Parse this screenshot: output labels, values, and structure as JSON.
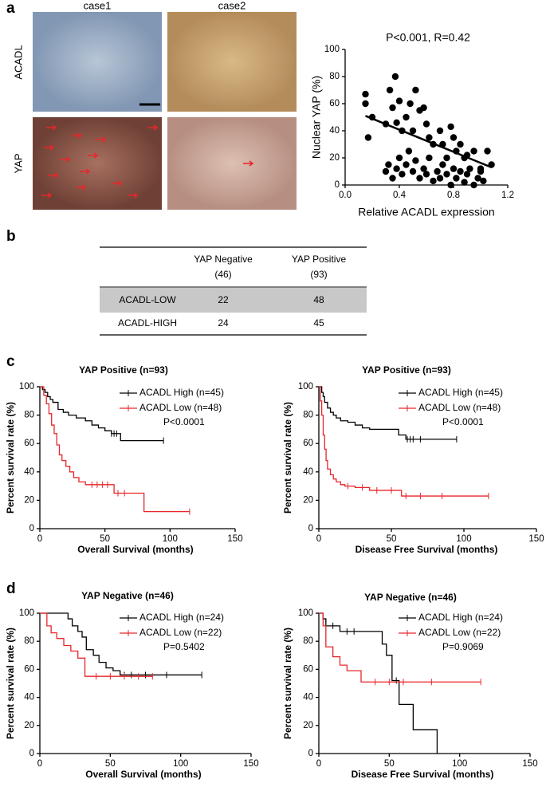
{
  "panel_labels": [
    "a",
    "b",
    "c",
    "d"
  ],
  "images": {
    "columns": [
      "case1",
      "case2"
    ],
    "rows": [
      "ACADL",
      "YAP"
    ]
  },
  "table": {
    "header": [
      [
        "YAP Negative",
        "(46)"
      ],
      [
        "YAP Positive",
        "(93)"
      ]
    ],
    "rows": [
      [
        "ACADL-LOW",
        22,
        48
      ],
      [
        "ACADL-HIGH",
        24,
        45
      ]
    ]
  },
  "chart_data": [
    {
      "type": "scatter",
      "title": "P<0.001, R=0.42",
      "x_label": "Relative ACADL expression",
      "y_label": "Nuclear YAP (%)",
      "xlim": [
        0,
        1.2
      ],
      "ylim": [
        0,
        100
      ],
      "xticks": [
        {
          "value": 0,
          "label": "0.0"
        },
        0.4,
        0.8,
        1.2
      ],
      "yticks": [
        0,
        20,
        40,
        60,
        80,
        100
      ],
      "color": "#000000",
      "x": [
        0.15,
        0.15,
        0.17,
        0.2,
        0.3,
        0.33,
        0.35,
        0.37,
        0.38,
        0.4,
        0.42,
        0.45,
        0.48,
        0.5,
        0.52,
        0.55,
        0.58,
        0.6,
        0.62,
        0.65,
        0.7,
        0.72,
        0.75,
        0.78,
        0.8,
        0.82,
        0.85,
        0.88,
        0.9,
        0.95,
        1.0,
        1.05,
        1.08,
        0.3,
        0.32,
        0.35,
        0.38,
        0.4,
        0.42,
        0.45,
        0.47,
        0.5,
        0.52,
        0.55,
        0.58,
        0.6,
        0.62,
        0.65,
        0.68,
        0.7,
        0.72,
        0.75,
        0.78,
        0.8,
        0.82,
        0.85,
        0.88,
        0.9,
        0.92,
        0.95,
        0.98,
        1.0,
        1.02
      ],
      "values": [
        60,
        67,
        35,
        50,
        45,
        70,
        57,
        80,
        46,
        62,
        40,
        50,
        60,
        40,
        70,
        55,
        57,
        45,
        35,
        30,
        40,
        30,
        20,
        43,
        35,
        25,
        30,
        20,
        22,
        25,
        12,
        25,
        15,
        10,
        15,
        5,
        12,
        20,
        8,
        15,
        25,
        10,
        18,
        5,
        12,
        8,
        20,
        3,
        10,
        5,
        15,
        8,
        0,
        12,
        5,
        10,
        2,
        8,
        12,
        0,
        5,
        10,
        3
      ],
      "trend_line": {
        "x": [
          0.15,
          1.08
        ],
        "values": [
          51,
          13
        ]
      }
    },
    {
      "type": "survival",
      "title": "YAP Positive (n=93)",
      "x_label": "Overall Survival (months)",
      "y_label": "Percent survival rate (%)",
      "annotation": "P<0.0001",
      "xlim": [
        0,
        150
      ],
      "ylim": [
        0,
        100
      ],
      "xticks": [
        0,
        50,
        100,
        150
      ],
      "yticks": [
        0,
        20,
        40,
        60,
        80,
        100
      ],
      "series": [
        {
          "name": "ACADL High (n=45)",
          "color": "#000000",
          "x": [
            0,
            2,
            4,
            6,
            8,
            10,
            14,
            18,
            22,
            28,
            35,
            40,
            45,
            50,
            55,
            62,
            95
          ],
          "values": [
            100,
            98,
            96,
            93,
            91,
            89,
            84,
            82,
            80,
            78,
            76,
            73,
            71,
            69,
            67,
            62,
            62
          ],
          "censor_x": [
            55,
            57,
            59,
            95
          ],
          "censor_values": [
            67,
            67,
            67,
            62
          ]
        },
        {
          "name": "ACADL Low (n=48)",
          "color": "#e8262a",
          "x": [
            0,
            3,
            5,
            7,
            9,
            11,
            13,
            15,
            17,
            20,
            23,
            26,
            30,
            35,
            57,
            80,
            115
          ],
          "values": [
            100,
            94,
            88,
            81,
            73,
            67,
            59,
            52,
            48,
            44,
            40,
            36,
            33,
            31,
            25,
            12,
            12
          ],
          "censor_x": [
            40,
            44,
            48,
            52,
            60,
            65,
            115
          ],
          "censor_values": [
            31,
            31,
            31,
            31,
            25,
            25,
            12
          ]
        }
      ]
    },
    {
      "type": "survival",
      "title": "YAP Positive (n=93)",
      "x_label": "Disease Free Survival (months)",
      "y_label": "Percent survival rate (%)",
      "annotation": "P<0.0001",
      "xlim": [
        0,
        150
      ],
      "ylim": [
        0,
        100
      ],
      "xticks": [
        0,
        50,
        100,
        150
      ],
      "yticks": [
        0,
        20,
        40,
        60,
        80,
        100
      ],
      "series": [
        {
          "name": "ACADL High (n=45)",
          "color": "#000000",
          "x": [
            0,
            2,
            3,
            4,
            6,
            8,
            10,
            12,
            15,
            20,
            25,
            30,
            35,
            55,
            60,
            95
          ],
          "values": [
            100,
            96,
            93,
            89,
            85,
            82,
            80,
            78,
            76,
            75,
            73,
            71,
            70,
            66,
            63,
            63
          ],
          "censor_x": [
            61,
            63,
            65,
            70,
            95
          ],
          "censor_values": [
            63,
            63,
            63,
            63,
            63
          ]
        },
        {
          "name": "ACADL Low (n=48)",
          "color": "#e8262a",
          "x": [
            0,
            1,
            2,
            3,
            4,
            5,
            6,
            8,
            10,
            12,
            15,
            18,
            25,
            35,
            57,
            117
          ],
          "values": [
            100,
            90,
            80,
            66,
            56,
            48,
            42,
            38,
            35,
            33,
            31,
            30,
            29,
            27,
            23,
            23
          ],
          "censor_x": [
            20,
            30,
            40,
            50,
            60,
            70,
            85,
            117
          ],
          "censor_values": [
            30,
            29,
            27,
            27,
            23,
            23,
            23,
            23
          ]
        }
      ]
    },
    {
      "type": "survival",
      "title": "YAP Negative (n=46)",
      "x_label": "Overall Survival (months)",
      "y_label": "Percent survival rate (%)",
      "annotation": "P=0.5402",
      "xlim": [
        0,
        150
      ],
      "ylim": [
        0,
        100
      ],
      "xticks": [
        0,
        50,
        100,
        150
      ],
      "yticks": [
        0,
        20,
        40,
        60,
        80,
        100
      ],
      "series": [
        {
          "name": "ACADL High (n=24)",
          "color": "#000000",
          "x": [
            0,
            15,
            20,
            23,
            27,
            30,
            33,
            38,
            42,
            47,
            52,
            57,
            115
          ],
          "values": [
            100,
            100,
            96,
            91,
            87,
            83,
            74,
            70,
            65,
            61,
            59,
            56,
            56
          ],
          "censor_x": [
            60,
            65,
            75,
            90,
            115
          ],
          "censor_values": [
            56,
            56,
            56,
            56,
            56
          ]
        },
        {
          "name": "ACADL Low (n=22)",
          "color": "#e8262a",
          "x": [
            0,
            5,
            8,
            12,
            17,
            22,
            27,
            32,
            80
          ],
          "values": [
            100,
            91,
            86,
            82,
            77,
            73,
            68,
            55,
            55
          ],
          "censor_x": [
            40,
            50,
            60,
            70,
            80
          ],
          "censor_values": [
            55,
            55,
            55,
            55,
            55
          ]
        }
      ]
    },
    {
      "type": "survival",
      "title": "YAP Negative (n=46)",
      "x_label": "Disease Free Survival (months)",
      "y_label": "Percent survival rate (%)",
      "annotation": "P=0.9069",
      "xlim": [
        0,
        150
      ],
      "ylim": [
        0,
        100
      ],
      "xticks": [
        0,
        50,
        100,
        150
      ],
      "yticks": [
        0,
        20,
        40,
        60,
        80,
        100
      ],
      "series": [
        {
          "name": "ACADL High (n=24)",
          "color": "#000000",
          "x": [
            0,
            3,
            5,
            15,
            30,
            45,
            48,
            52,
            57,
            62,
            67,
            75,
            84
          ],
          "values": [
            100,
            96,
            91,
            87,
            87,
            78,
            70,
            52,
            35,
            35,
            17,
            17,
            0
          ],
          "censor_x": [
            10,
            20,
            25,
            55
          ],
          "censor_values": [
            91,
            87,
            87,
            52
          ]
        },
        {
          "name": "ACADL Low (n=22)",
          "color": "#e8262a",
          "x": [
            0,
            3,
            5,
            10,
            15,
            20,
            30,
            115
          ],
          "values": [
            100,
            91,
            76,
            69,
            63,
            59,
            51,
            51
          ],
          "censor_x": [
            40,
            50,
            60,
            80,
            115
          ],
          "censor_values": [
            51,
            51,
            51,
            51,
            51
          ]
        }
      ]
    }
  ]
}
